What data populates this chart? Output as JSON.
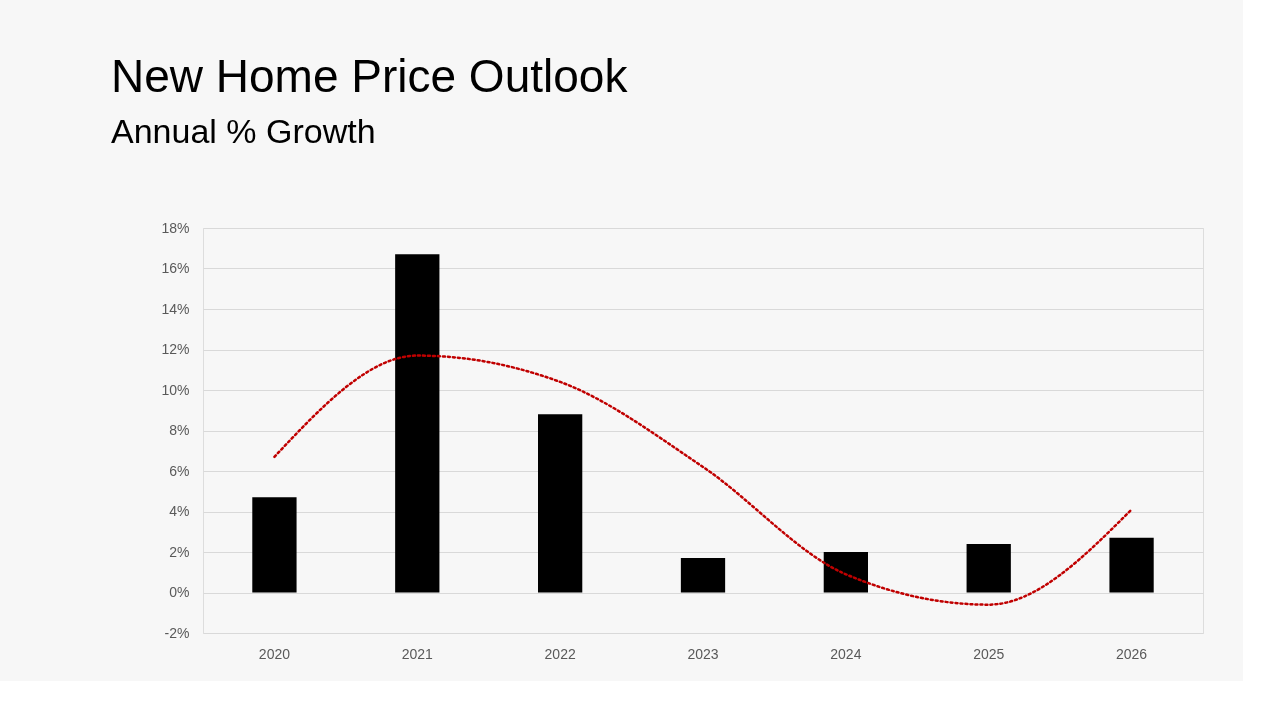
{
  "chart_data": {
    "type": "bar",
    "title": "New Home Price Outlook",
    "subtitle": "Annual % Growth",
    "categories": [
      "2020",
      "2021",
      "2022",
      "2023",
      "2024",
      "2025",
      "2026"
    ],
    "series": [
      {
        "color": "#000000",
        "values": [
          4.7,
          16.7,
          8.8,
          1.7,
          2.0,
          2.4,
          2.7
        ]
      },
      {
        "type": "line",
        "color": "#c00000",
        "line_style": "dotted",
        "values": [
          6.7,
          11.7,
          10.4,
          6.2,
          0.9,
          -0.6,
          4.1
        ]
      }
    ],
    "ylim": [
      -2,
      18
    ],
    "yticks": [
      {
        "value": -2,
        "label": "-2%"
      },
      {
        "value": 0,
        "label": "0%"
      },
      {
        "value": 2,
        "label": "2%"
      },
      {
        "value": 4,
        "label": "4%"
      },
      {
        "value": 6,
        "label": "6%"
      },
      {
        "value": 8,
        "label": "8%"
      },
      {
        "value": 10,
        "label": "10%"
      },
      {
        "value": 12,
        "label": "12%"
      },
      {
        "value": 14,
        "label": "14%"
      },
      {
        "value": 16,
        "label": "16%"
      },
      {
        "value": 18,
        "label": "18%"
      }
    ],
    "grid": "y"
  }
}
